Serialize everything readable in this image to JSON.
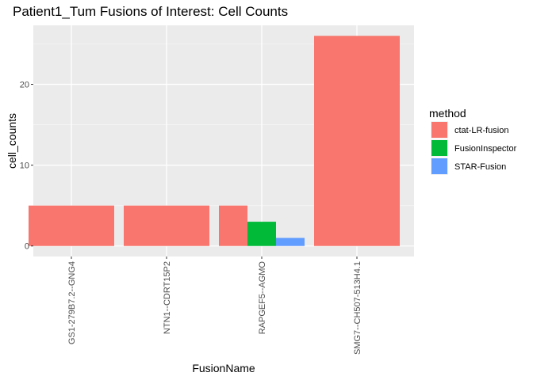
{
  "chart_data": {
    "type": "bar",
    "title": "Patient1_Tum Fusions of Interest: Cell Counts",
    "xlabel": "FusionName",
    "ylabel": "cell_counts",
    "categories": [
      "GS1-279B7.2--GNG4",
      "NTN1--CDRT15P2",
      "RAPGEF5--AGMO",
      "SMG7--CH507-513H4.1"
    ],
    "y_ticks": [
      0,
      10,
      20
    ],
    "ylim": [
      -1.3,
      27.3
    ],
    "grid": true,
    "legend": {
      "title": "method",
      "placement": "right",
      "items": [
        {
          "name": "ctat-LR-fusion",
          "color": "#F8766D"
        },
        {
          "name": "FusionInspector",
          "color": "#00BA38"
        },
        {
          "name": "STAR-Fusion",
          "color": "#619CFF"
        }
      ]
    },
    "bars": [
      {
        "category": "GS1-279B7.2--GNG4",
        "method": "ctat-LR-fusion",
        "value": 5
      },
      {
        "category": "NTN1--CDRT15P2",
        "method": "ctat-LR-fusion",
        "value": 5
      },
      {
        "category": "RAPGEF5--AGMO",
        "method": "ctat-LR-fusion",
        "value": 5
      },
      {
        "category": "RAPGEF5--AGMO",
        "method": "FusionInspector",
        "value": 3
      },
      {
        "category": "RAPGEF5--AGMO",
        "method": "STAR-Fusion",
        "value": 1
      },
      {
        "category": "SMG7--CH507-513H4.1",
        "method": "ctat-LR-fusion",
        "value": 26
      }
    ]
  }
}
